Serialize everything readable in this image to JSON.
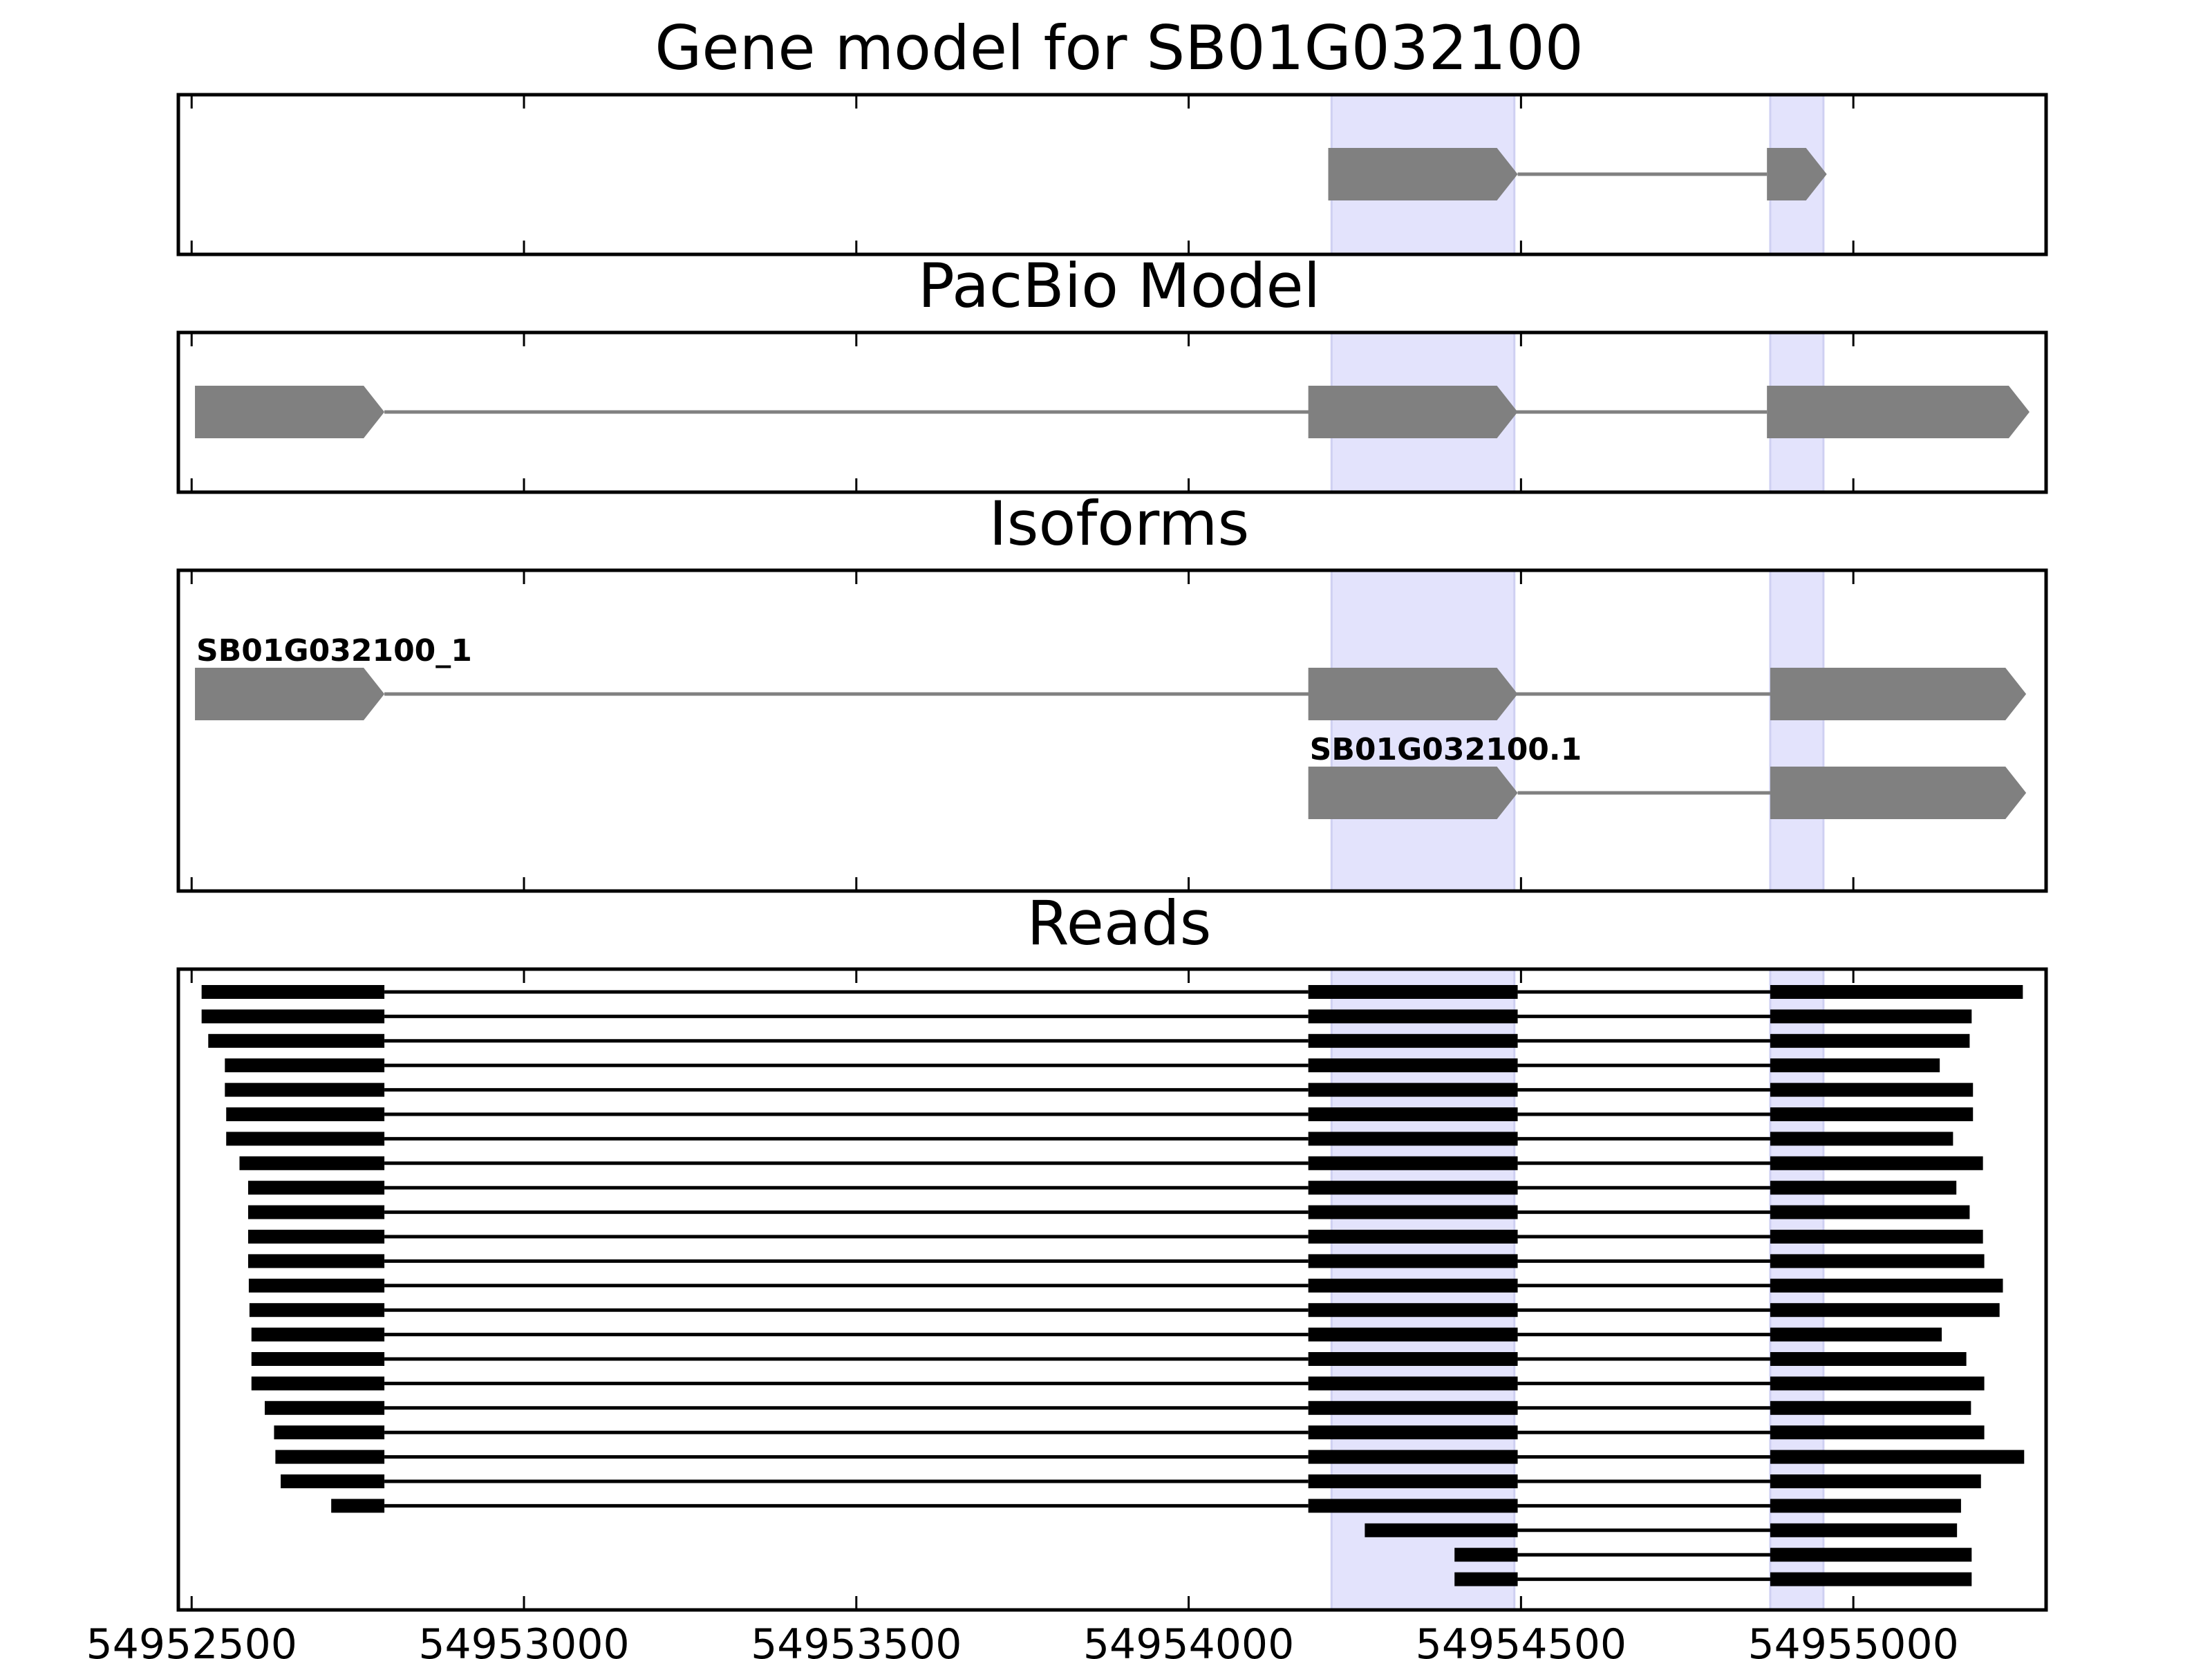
{
  "chart_data": {
    "type": "gene-structure",
    "x_range": [
      54952480,
      54955290
    ],
    "ticks": [
      54952500,
      54953000,
      54953500,
      54954000,
      54954500,
      54955000
    ],
    "tick_labels": [
      "54952500",
      "54953000",
      "54953500",
      "54954000",
      "54954500",
      "54955000"
    ],
    "highlight_regions": [
      [
        54954215,
        54954490
      ],
      [
        54954875,
        54954955
      ]
    ],
    "exon_color": "#808080",
    "intron_color": "#808080",
    "read_color": "#000000",
    "highlight_color": "#e3e3fc",
    "panels": [
      {
        "title": "Gene model for SB01G032100",
        "tracks": [
          {
            "label": "",
            "exons": [
              [
                54954210,
                54954495
              ],
              [
                54954870,
                54954960
              ]
            ]
          }
        ]
      },
      {
        "title": "PacBio Model",
        "tracks": [
          {
            "label": "",
            "exons": [
              [
                54952505,
                54952790
              ],
              [
                54954180,
                54954495
              ],
              [
                54954870,
                54955265
              ]
            ]
          }
        ]
      },
      {
        "title": "Isoforms",
        "tracks": [
          {
            "label": "SB01G032100_1",
            "exons": [
              [
                54952505,
                54952790
              ],
              [
                54954180,
                54954495
              ],
              [
                54954875,
                54955260
              ]
            ]
          },
          {
            "label": "SB01G032100.1",
            "exons": [
              [
                54954180,
                54954495
              ],
              [
                54954875,
                54955260
              ]
            ]
          }
        ]
      },
      {
        "title": "Reads",
        "reads": [
          [
            54952515,
            54955255
          ],
          [
            54952515,
            54955178
          ],
          [
            54952525,
            54955175
          ],
          [
            54952550,
            54955130
          ],
          [
            54952550,
            54955180
          ],
          [
            54952552,
            54955180
          ],
          [
            54952552,
            54955150
          ],
          [
            54952572,
            54955195
          ],
          [
            54952585,
            54955155
          ],
          [
            54952585,
            54955175
          ],
          [
            54952585,
            54955195
          ],
          [
            54952585,
            54955197
          ],
          [
            54952586,
            54955225
          ],
          [
            54952587,
            54955220
          ],
          [
            54952590,
            54955133
          ],
          [
            54952590,
            54955170
          ],
          [
            54952590,
            54955197
          ],
          [
            54952610,
            54955177
          ],
          [
            54952624,
            54955197
          ],
          [
            54952626,
            54955257
          ],
          [
            54952634,
            54955192
          ],
          [
            54952710,
            54955162
          ],
          [
            54954265,
            54955156
          ],
          [
            54954400,
            54955178
          ],
          [
            54954400,
            54955178
          ]
        ]
      }
    ]
  }
}
